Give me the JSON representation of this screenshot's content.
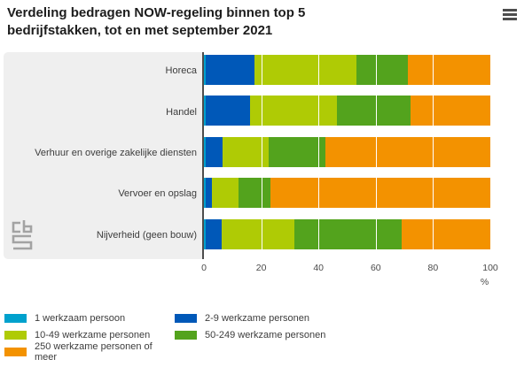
{
  "title": "Verdeling bedragen NOW-regeling binnen top 5 bedrijfstakken, tot en met september 2021",
  "menu_icon": "hamburger-menu-icon",
  "logo_icon": "cbs-logo",
  "chart_data": {
    "type": "bar",
    "orientation": "horizontal",
    "stacked": true,
    "unit": "%",
    "title": "Verdeling bedragen NOW-regeling binnen top 5 bedrijfstakken, tot en met september 2021",
    "categories": [
      "Horeca",
      "Handel",
      "Verhuur en overige zakelijke diensten",
      "Vervoer en opslag",
      "Nijverheid (geen bouw)"
    ],
    "series": [
      {
        "name": "1 werkzaam persoon",
        "color": "#00a1cd",
        "values": [
          0.7,
          0.7,
          0.5,
          0.5,
          0.5
        ]
      },
      {
        "name": "2-9 werkzame personen",
        "color": "#0058b8",
        "values": [
          16.9,
          15.4,
          6.0,
          2.3,
          5.8
        ]
      },
      {
        "name": "10-49 werkzame personen",
        "color": "#afcb05",
        "values": [
          35.6,
          30.3,
          16.1,
          9.3,
          25.4
        ]
      },
      {
        "name": "50-249 werkzame personen",
        "color": "#53a31d",
        "values": [
          18.0,
          25.7,
          19.8,
          11.1,
          37.3
        ]
      },
      {
        "name": "250 werkzame personen of meer",
        "color": "#f39200",
        "values": [
          28.8,
          27.9,
          57.6,
          76.8,
          31.0
        ]
      }
    ],
    "xlabel": "%",
    "x_ticks": [
      0,
      20,
      40,
      60,
      80,
      100
    ],
    "xlim": [
      0,
      100
    ],
    "grid": true,
    "legend_position": "bottom"
  }
}
